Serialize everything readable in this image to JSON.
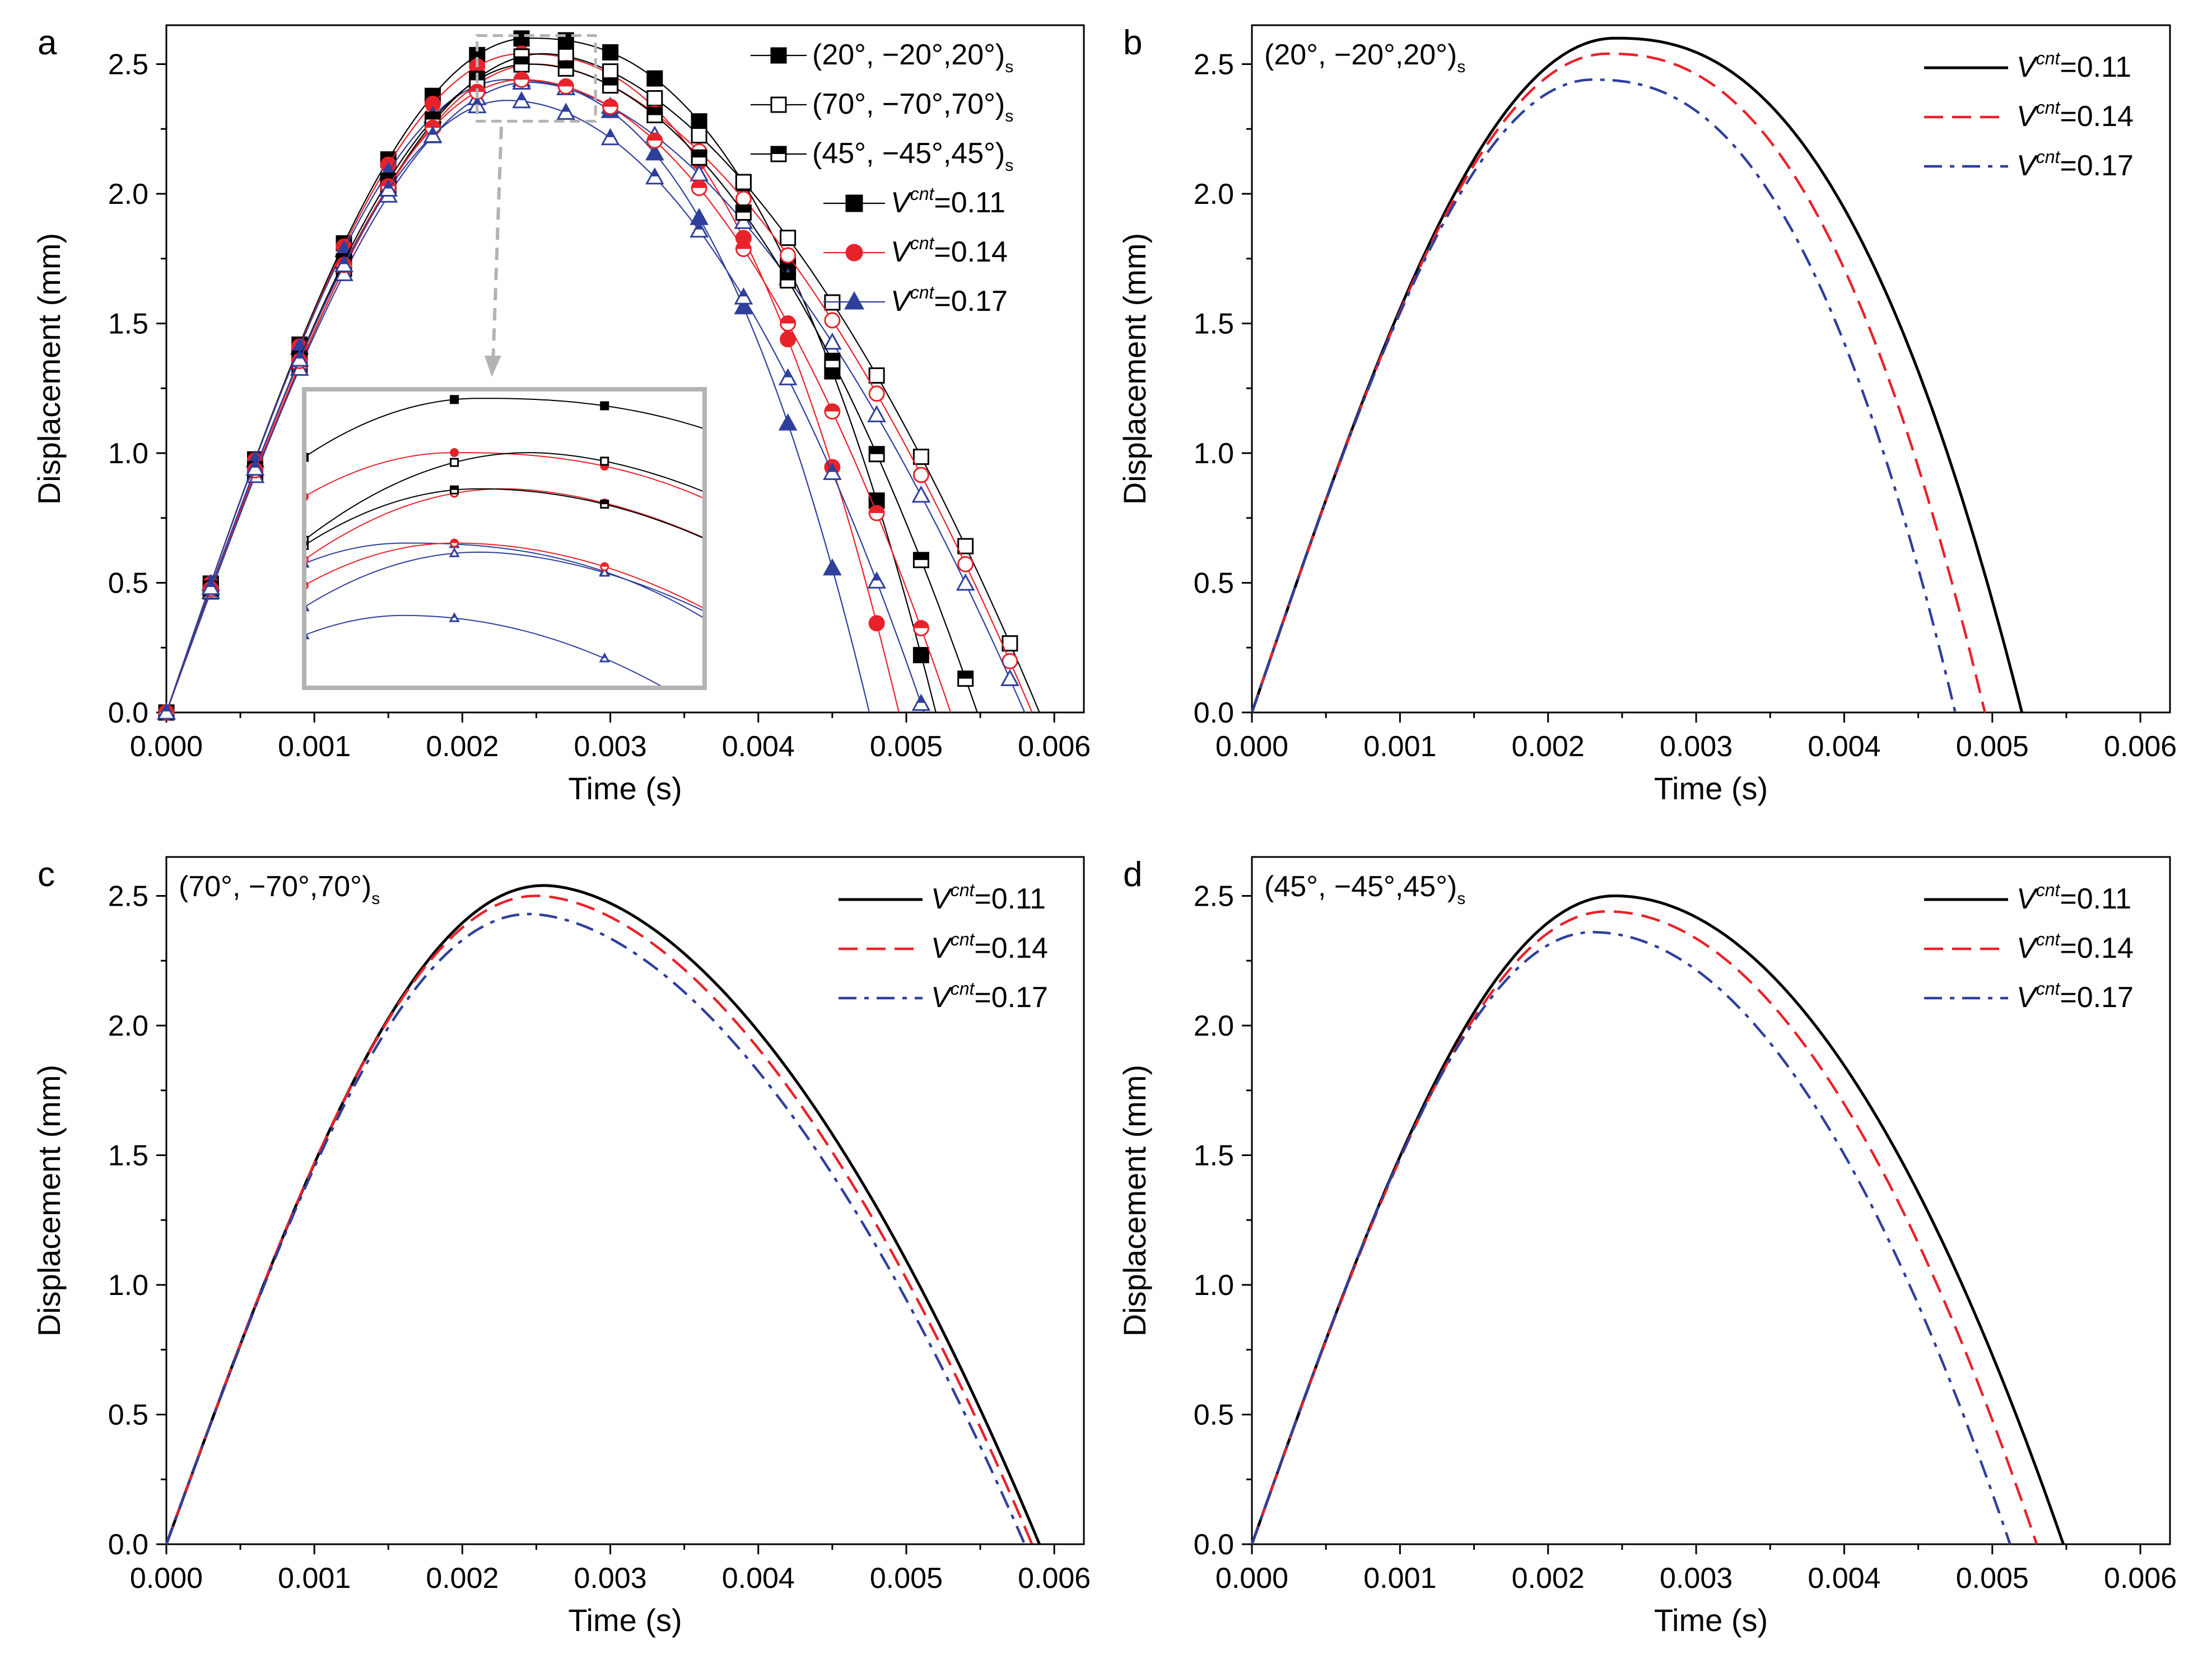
{
  "figure": {
    "colors": {
      "black": "#000000",
      "red": "#e8222a",
      "blue": "#2e3f9c",
      "gray": "#b3b3b3"
    }
  },
  "chart_data": [
    {
      "panel": "a",
      "type": "line",
      "xlabel": "Time (s)",
      "ylabel": "Displacement (mm)",
      "xlim": [
        0,
        0.0062
      ],
      "ylim": [
        0,
        2.65
      ],
      "xticks": [
        "0.000",
        "0.001",
        "0.002",
        "0.003",
        "0.004",
        "0.005",
        "0.006"
      ],
      "yticks": [
        "0.0",
        "0.5",
        "1.0",
        "1.5",
        "2.0",
        "2.5"
      ],
      "legend": {
        "layups": [
          {
            "text": "(20°, −20°,20°)",
            "sub": "s",
            "marker": "square-filled"
          },
          {
            "text": "(70°, −70°,70°)",
            "sub": "s",
            "marker": "square-open"
          },
          {
            "text": "(45°, −45°,45°)",
            "sub": "s",
            "marker": "square-half"
          }
        ],
        "volumes": [
          {
            "prefix": "V",
            "sup": "cnt",
            "value": "=0.11",
            "color": "black",
            "marker": "square"
          },
          {
            "prefix": "V",
            "sup": "cnt",
            "value": "=0.14",
            "color": "red",
            "marker": "circle"
          },
          {
            "prefix": "V",
            "sup": "cnt",
            "value": "=0.17",
            "color": "blue",
            "marker": "triangle"
          }
        ]
      },
      "series": [
        {
          "name": "(20°,−20°,20°)s Vcnt=0.11",
          "layup": "20",
          "color": "black",
          "marker": "square",
          "fill": "filled",
          "peak": 2.6,
          "tpeak": 0.00245,
          "tend": 0.0052,
          "k": 2.4
        },
        {
          "name": "(20°,−20°,20°)s Vcnt=0.14",
          "layup": "20",
          "color": "red",
          "marker": "circle",
          "fill": "filled",
          "peak": 2.54,
          "tpeak": 0.0024,
          "tend": 0.00495,
          "k": 2.4
        },
        {
          "name": "(20°,−20°,20°)s Vcnt=0.17",
          "layup": "20",
          "color": "blue",
          "marker": "triangle",
          "fill": "filled",
          "peak": 2.44,
          "tpeak": 0.0023,
          "tend": 0.00475,
          "k": 2.4
        },
        {
          "name": "(70°,−70°,70°)s Vcnt=0.11",
          "layup": "70",
          "color": "black",
          "marker": "square",
          "fill": "open",
          "peak": 2.54,
          "tpeak": 0.00255,
          "tend": 0.0059,
          "k": 1.8
        },
        {
          "name": "(70°,−70°,70°)s Vcnt=0.14",
          "layup": "70",
          "color": "red",
          "marker": "circle",
          "fill": "open",
          "peak": 2.5,
          "tpeak": 0.0025,
          "tend": 0.00585,
          "k": 1.8
        },
        {
          "name": "(70°,−70°,70°)s Vcnt=0.17",
          "layup": "70",
          "color": "blue",
          "marker": "triangle",
          "fill": "open",
          "peak": 2.43,
          "tpeak": 0.00245,
          "tend": 0.0058,
          "k": 1.8
        },
        {
          "name": "(45°,−45°,45°)s Vcnt=0.11",
          "layup": "45",
          "color": "black",
          "marker": "square",
          "fill": "half",
          "peak": 2.5,
          "tpeak": 0.00245,
          "tend": 0.00548,
          "k": 2.0
        },
        {
          "name": "(45°,−45°,45°)s Vcnt=0.14",
          "layup": "45",
          "color": "red",
          "marker": "circle",
          "fill": "half",
          "peak": 2.44,
          "tpeak": 0.0024,
          "tend": 0.0053,
          "k": 2.0
        },
        {
          "name": "(45°,−45°,45°)s Vcnt=0.17",
          "layup": "45",
          "color": "blue",
          "marker": "triangle",
          "fill": "half",
          "peak": 2.36,
          "tpeak": 0.0023,
          "tend": 0.00512,
          "k": 2.0
        }
      ],
      "marker_times": [
        0.0,
        0.0003,
        0.0006,
        0.0009,
        0.0012,
        0.0015,
        0.0018,
        0.0021,
        0.0024,
        0.0027,
        0.003,
        0.0033,
        0.0036,
        0.0039,
        0.0042,
        0.0045,
        0.0048,
        0.0051,
        0.0054,
        0.0057
      ],
      "inset": {
        "zoom_x": [
          0.0021,
          0.0029
        ],
        "zoom_y": [
          2.28,
          2.61
        ]
      }
    },
    {
      "panel": "b",
      "type": "line",
      "layup_label": {
        "text": "(20°, −20°,20°)",
        "sub": "s"
      },
      "xlabel": "Time (s)",
      "ylabel": "Displacement (mm)",
      "xlim": [
        0,
        0.0062
      ],
      "ylim": [
        0,
        2.65
      ],
      "xticks": [
        "0.000",
        "0.001",
        "0.002",
        "0.003",
        "0.004",
        "0.005",
        "0.006"
      ],
      "yticks": [
        "0.0",
        "0.5",
        "1.0",
        "1.5",
        "2.0",
        "2.5"
      ],
      "series": [
        {
          "name": "Vcnt=0.11",
          "prefix": "V",
          "sup": "cnt",
          "value": "=0.11",
          "color": "black",
          "dash": "solid",
          "peak": 2.6,
          "tpeak": 0.00245,
          "tend": 0.0052,
          "k": 2.4
        },
        {
          "name": "Vcnt=0.14",
          "prefix": "V",
          "sup": "cnt",
          "value": "=0.14",
          "color": "red",
          "dash": "dash",
          "peak": 2.54,
          "tpeak": 0.0024,
          "tend": 0.00495,
          "k": 2.4
        },
        {
          "name": "Vcnt=0.17",
          "prefix": "V",
          "sup": "cnt",
          "value": "=0.17",
          "color": "blue",
          "dash": "dashdot",
          "peak": 2.44,
          "tpeak": 0.0023,
          "tend": 0.00475,
          "k": 2.4
        }
      ]
    },
    {
      "panel": "c",
      "type": "line",
      "layup_label": {
        "text": "(70°, −70°,70°)",
        "sub": "s"
      },
      "xlabel": "Time (s)",
      "ylabel": "Displacement (mm)",
      "xlim": [
        0,
        0.0062
      ],
      "ylim": [
        0,
        2.65
      ],
      "xticks": [
        "0.000",
        "0.001",
        "0.002",
        "0.003",
        "0.004",
        "0.005",
        "0.006"
      ],
      "yticks": [
        "0.0",
        "0.5",
        "1.0",
        "1.5",
        "2.0",
        "2.5"
      ],
      "series": [
        {
          "name": "Vcnt=0.11",
          "prefix": "V",
          "sup": "cnt",
          "value": "=0.11",
          "color": "black",
          "dash": "solid",
          "peak": 2.54,
          "tpeak": 0.00255,
          "tend": 0.0059,
          "k": 1.8
        },
        {
          "name": "Vcnt=0.14",
          "prefix": "V",
          "sup": "cnt",
          "value": "=0.14",
          "color": "red",
          "dash": "dash",
          "peak": 2.5,
          "tpeak": 0.0025,
          "tend": 0.00585,
          "k": 1.8
        },
        {
          "name": "Vcnt=0.17",
          "prefix": "V",
          "sup": "cnt",
          "value": "=0.17",
          "color": "blue",
          "dash": "dashdot",
          "peak": 2.43,
          "tpeak": 0.00245,
          "tend": 0.0058,
          "k": 1.8
        }
      ]
    },
    {
      "panel": "d",
      "type": "line",
      "layup_label": {
        "text": "(45°, −45°,45°)",
        "sub": "s"
      },
      "xlabel": "Time (s)",
      "ylabel": "Displacement (mm)",
      "xlim": [
        0,
        0.0062
      ],
      "ylim": [
        0,
        2.65
      ],
      "xticks": [
        "0.000",
        "0.001",
        "0.002",
        "0.003",
        "0.004",
        "0.005",
        "0.006"
      ],
      "yticks": [
        "0.0",
        "0.5",
        "1.0",
        "1.5",
        "2.0",
        "2.5"
      ],
      "series": [
        {
          "name": "Vcnt=0.11",
          "prefix": "V",
          "sup": "cnt",
          "value": "=0.11",
          "color": "black",
          "dash": "solid",
          "peak": 2.5,
          "tpeak": 0.00245,
          "tend": 0.00548,
          "k": 2.0
        },
        {
          "name": "Vcnt=0.14",
          "prefix": "V",
          "sup": "cnt",
          "value": "=0.14",
          "color": "red",
          "dash": "dash",
          "peak": 2.44,
          "tpeak": 0.0024,
          "tend": 0.0053,
          "k": 2.0
        },
        {
          "name": "Vcnt=0.17",
          "prefix": "V",
          "sup": "cnt",
          "value": "=0.17",
          "color": "blue",
          "dash": "dashdot",
          "peak": 2.36,
          "tpeak": 0.0023,
          "tend": 0.00512,
          "k": 2.0
        }
      ]
    }
  ]
}
